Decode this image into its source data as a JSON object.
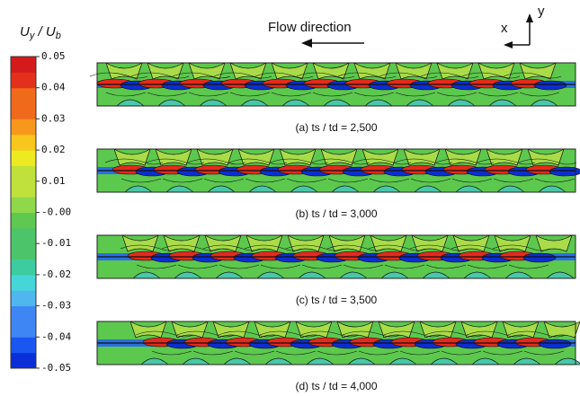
{
  "colorbar": {
    "title": [
      "U",
      "y",
      " / ",
      "U",
      "b"
    ],
    "ticks": [
      "0.05",
      "0.04",
      "0.03",
      "0.02",
      "0.01",
      "-0.00",
      "-0.01",
      "-0.02",
      "-0.03",
      "-0.04",
      "-0.05"
    ]
  },
  "flow_label": "Flow direction",
  "axes": {
    "x": "x",
    "y": "y"
  },
  "panels": [
    {
      "caption": "(a) ts / td  = 2,500"
    },
    {
      "caption": "(b) ts / td  = 3,000"
    },
    {
      "caption": "(c) ts / td  = 3,500"
    },
    {
      "caption": "(d)  ts / td  = 4,000"
    }
  ]
}
